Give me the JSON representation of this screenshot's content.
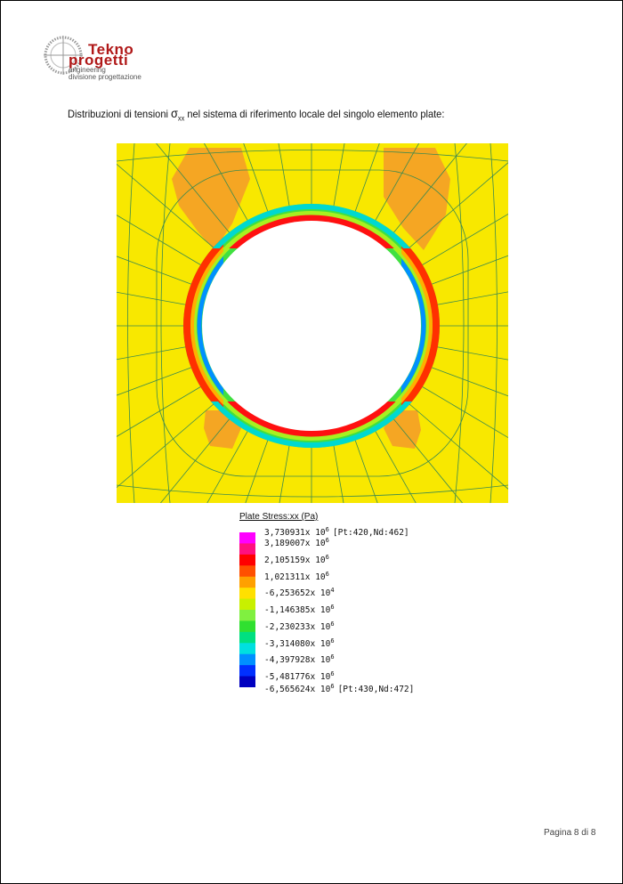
{
  "logo": {
    "line1": "Tekno",
    "line2": "progetti",
    "line3": "engineering",
    "line4": "divisione progettazione"
  },
  "caption": {
    "before": "Distribuzioni di tensioni ",
    "symbol": "σ",
    "subscript": "xx",
    "after": " nel sistema di riferimento locale del singolo elemento plate:"
  },
  "legend": {
    "title": "Plate Stress:xx (Pa)",
    "colors": [
      "#ff00ff",
      "#ff1080",
      "#ff0000",
      "#ff5000",
      "#ffa000",
      "#ffe000",
      "#c8f000",
      "#80f040",
      "#30e030",
      "#00e080",
      "#00e0e0",
      "#0090ff",
      "#0030ff",
      "#0000c0"
    ],
    "entries": [
      {
        "mantissa": "3,730931x 10",
        "exponent": "6",
        "note": "[Pt:420,Nd:462]"
      },
      {
        "mantissa": "3,189007x 10",
        "exponent": "6"
      },
      {
        "mantissa": "2,105159x 10",
        "exponent": "6"
      },
      {
        "mantissa": "1,021311x 10",
        "exponent": "6"
      },
      {
        "mantissa": "-6,253652x 10",
        "exponent": "4"
      },
      {
        "mantissa": "-1,146385x 10",
        "exponent": "6"
      },
      {
        "mantissa": "-2,230233x 10",
        "exponent": "6"
      },
      {
        "mantissa": "-3,314080x 10",
        "exponent": "6"
      },
      {
        "mantissa": "-4,397928x 10",
        "exponent": "6"
      },
      {
        "mantissa": "-5,481776x 10",
        "exponent": "6"
      },
      {
        "mantissa": "-6,565624x 10",
        "exponent": "6",
        "note": "[Pt:430,Nd:472]"
      }
    ]
  },
  "footer": "Pagina 8 di 8"
}
